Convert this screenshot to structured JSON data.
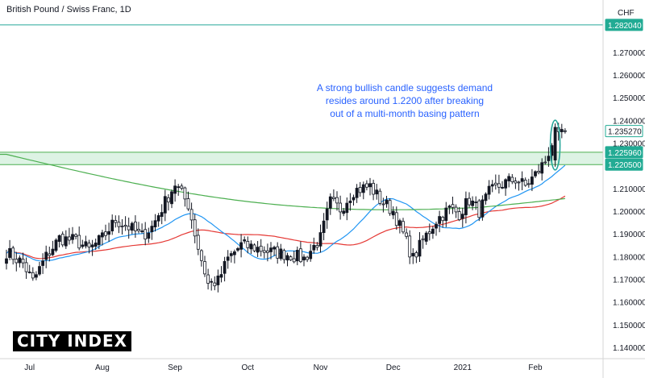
{
  "header": {
    "title": "British Pound / Swiss Franc, 1D"
  },
  "annotation": {
    "line1": "A strong bullish candle suggests demand",
    "line2": "resides around 1.2200 after breaking",
    "line3": "out of a multi-month basing pattern"
  },
  "logo": {
    "text": "CITY INDEX"
  },
  "colors": {
    "bull": "#131722",
    "bear": "#ffffff",
    "ma_fast": "#2196f3",
    "ma_mid": "#e53935",
    "ma_slow": "#4caf50",
    "zone_fill": "#cfeed8",
    "zone_line": "#4caf50",
    "resistance_line": "#26a69a",
    "annotation_text": "#2962ff",
    "tag_fill": "#22ab94",
    "callout_ellipse": "#26a69a"
  },
  "chart_data": {
    "type": "candlestick",
    "y_axis": {
      "currency_label": "CHF",
      "ticks": [
        "1.270000",
        "1.260000",
        "1.250000",
        "1.240000",
        "1.230000",
        "1.210000",
        "1.200000",
        "1.190000",
        "1.180000",
        "1.170000",
        "1.160000",
        "1.150000",
        "1.140000"
      ],
      "tick_values": [
        1.27,
        1.26,
        1.25,
        1.24,
        1.23,
        1.21,
        1.2,
        1.19,
        1.18,
        1.17,
        1.16,
        1.15,
        1.14
      ],
      "range": [
        1.135,
        1.293
      ]
    },
    "x_axis": {
      "ticks": [
        "Jul",
        "Aug",
        "Sep",
        "Oct",
        "Nov",
        "Dec",
        "2021",
        "Feb"
      ],
      "tick_positions": [
        7,
        29,
        51,
        73,
        95,
        117,
        138,
        160
      ],
      "range": [
        0,
        173
      ]
    },
    "price_tags": [
      {
        "label": "1.282040",
        "value": 1.28204,
        "style": "filled"
      },
      {
        "label": "1.235270",
        "value": 1.23527,
        "style": "outline"
      },
      {
        "label": "1.225960",
        "value": 1.22596,
        "style": "filled"
      },
      {
        "label": "1.220500",
        "value": 1.2205,
        "style": "filled"
      }
    ],
    "resistance_level": 1.28204,
    "support_zone": [
      1.2205,
      1.22596
    ],
    "last_price": 1.23527,
    "ma_slow_anchor": {
      "start": 1.225,
      "end": 1.204
    },
    "callout_candle_index": 166,
    "anchors": [
      [
        0,
        1.182
      ],
      [
        5,
        1.177
      ],
      [
        8,
        1.169
      ],
      [
        12,
        1.18
      ],
      [
        16,
        1.188
      ],
      [
        21,
        1.187
      ],
      [
        25,
        1.183
      ],
      [
        29,
        1.188
      ],
      [
        33,
        1.196
      ],
      [
        37,
        1.193
      ],
      [
        41,
        1.189
      ],
      [
        44,
        1.193
      ],
      [
        48,
        1.204
      ],
      [
        51,
        1.212
      ],
      [
        55,
        1.203
      ],
      [
        58,
        1.184
      ],
      [
        61,
        1.168
      ],
      [
        64,
        1.169
      ],
      [
        67,
        1.179
      ],
      [
        71,
        1.185
      ],
      [
        75,
        1.184
      ],
      [
        80,
        1.182
      ],
      [
        85,
        1.181
      ],
      [
        90,
        1.179
      ],
      [
        95,
        1.188
      ],
      [
        98,
        1.204
      ],
      [
        101,
        1.201
      ],
      [
        105,
        1.209
      ],
      [
        110,
        1.211
      ],
      [
        113,
        1.205
      ],
      [
        117,
        1.2
      ],
      [
        120,
        1.19
      ],
      [
        123,
        1.179
      ],
      [
        126,
        1.187
      ],
      [
        130,
        1.196
      ],
      [
        134,
        1.201
      ],
      [
        137,
        1.199
      ],
      [
        140,
        1.205
      ],
      [
        143,
        1.2
      ],
      [
        146,
        1.208
      ],
      [
        150,
        1.212
      ],
      [
        154,
        1.214
      ],
      [
        157,
        1.211
      ],
      [
        160,
        1.216
      ],
      [
        163,
        1.222
      ],
      [
        166,
        1.234
      ],
      [
        168,
        1.236
      ],
      [
        169,
        1.2353
      ]
    ],
    "spike_after_index": 165,
    "seed": 7
  }
}
